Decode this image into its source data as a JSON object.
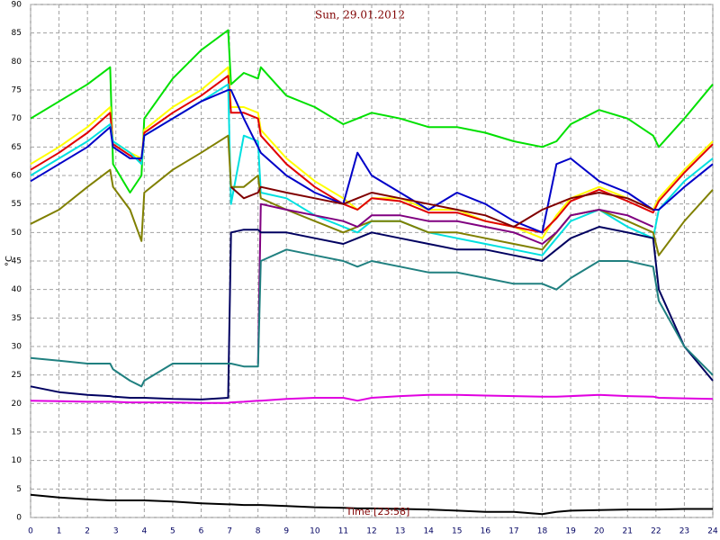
{
  "chart_data": {
    "type": "line",
    "title": "Sun, 29.01.2012",
    "y_label": "°C",
    "x_label": "Time [23:58]",
    "grid": true,
    "xlim": [
      0,
      24
    ],
    "ylim": [
      0,
      90
    ],
    "xticks": [
      0,
      1,
      2,
      3,
      4,
      5,
      6,
      7,
      8,
      9,
      10,
      11,
      12,
      13,
      14,
      15,
      16,
      17,
      18,
      19,
      20,
      21,
      22,
      23,
      24
    ],
    "yticks": [
      0,
      5,
      10,
      15,
      20,
      25,
      30,
      35,
      40,
      45,
      50,
      55,
      60,
      65,
      70,
      75,
      80,
      85,
      90
    ],
    "x": [
      0,
      1,
      2,
      2.8,
      2.9,
      3.5,
      3.9,
      4,
      5,
      6,
      6.95,
      7.05,
      7.5,
      8,
      8.1,
      9,
      10,
      11,
      11.5,
      12,
      13,
      14,
      15,
      16,
      17,
      18,
      18.5,
      19,
      20,
      21,
      21.9,
      22.1,
      23,
      24
    ],
    "series": [
      {
        "color": "#00e000",
        "values": [
          70,
          73,
          76,
          79,
          62,
          57,
          60,
          70,
          77,
          82,
          85.5,
          76,
          78,
          77,
          79,
          74,
          72,
          69,
          70,
          71,
          70,
          68.5,
          68.5,
          67.5,
          66,
          65,
          66,
          69,
          71.5,
          70,
          67,
          65,
          70,
          76
        ]
      },
      {
        "color": "#ffff00",
        "values": [
          62,
          65,
          68.5,
          72,
          66,
          64,
          63,
          68,
          72,
          75,
          79,
          72,
          72,
          71,
          68,
          63,
          59,
          56,
          54,
          56,
          56,
          54,
          54,
          52,
          51,
          49,
          53,
          56,
          58,
          56,
          54,
          56,
          61,
          66
        ]
      },
      {
        "color": "#e00000",
        "values": [
          61,
          64,
          67.5,
          71,
          65.5,
          63.5,
          62.5,
          67.5,
          71,
          74,
          77.5,
          71,
          71,
          70,
          67,
          62,
          58,
          55,
          54,
          56,
          55.5,
          53.5,
          53.5,
          52,
          51,
          50,
          52.5,
          55.5,
          57.5,
          55.5,
          53.5,
          55.5,
          60.5,
          65.5
        ]
      },
      {
        "color": "#00e0e0",
        "values": [
          60,
          63,
          66,
          69,
          66,
          64,
          62,
          67,
          70,
          73,
          76,
          55,
          67,
          66,
          57,
          56,
          53,
          51,
          50,
          52,
          52,
          50,
          49,
          48,
          47,
          46,
          49,
          52,
          54,
          51,
          49,
          54,
          59,
          63
        ]
      },
      {
        "color": "#0000c8",
        "values": [
          59,
          62,
          65,
          68.5,
          65,
          63,
          63,
          67,
          70,
          73,
          75,
          75,
          70,
          65,
          64,
          60,
          57,
          55,
          64,
          60,
          57,
          54,
          57,
          55,
          52,
          50,
          62,
          63,
          59,
          57,
          54,
          54,
          58,
          62
        ]
      },
      {
        "color": "#808000",
        "values": [
          51.5,
          54,
          58,
          61,
          58,
          54,
          48.5,
          57,
          61,
          64,
          67,
          58,
          58,
          60,
          56,
          54,
          52,
          50,
          51,
          52,
          52,
          50,
          50,
          49,
          48,
          47,
          50,
          53,
          54,
          52,
          50,
          46,
          52,
          57.5
        ]
      },
      {
        "color": "#800000",
        "values": [
          null,
          null,
          null,
          null,
          null,
          null,
          null,
          null,
          null,
          null,
          null,
          58,
          56,
          57,
          58,
          57,
          56,
          55,
          56,
          57,
          56,
          55,
          54,
          53,
          51,
          54,
          55,
          56,
          57,
          56,
          54,
          null,
          null,
          null
        ]
      },
      {
        "color": "#800080",
        "values": [
          null,
          null,
          null,
          null,
          null,
          null,
          null,
          null,
          null,
          null,
          null,
          null,
          null,
          27,
          55,
          54,
          53,
          52,
          51,
          53,
          53,
          52,
          52,
          51,
          50,
          48,
          50,
          53,
          54,
          53,
          51,
          null,
          null,
          null
        ]
      },
      {
        "color": "#000060",
        "values": [
          23,
          22,
          21.5,
          21.3,
          21.2,
          21,
          21,
          21,
          20.8,
          20.7,
          21,
          50,
          50.5,
          50.5,
          50,
          50,
          49,
          48,
          49,
          50,
          49,
          48,
          47,
          47,
          46,
          45,
          47,
          49,
          51,
          50,
          49,
          40,
          30,
          24
        ]
      },
      {
        "color": "#208080",
        "values": [
          28,
          27.5,
          27,
          27,
          26,
          24,
          23,
          24,
          27,
          27,
          27,
          27,
          26.5,
          26.5,
          45,
          47,
          46,
          45,
          44,
          45,
          44,
          43,
          43,
          42,
          41,
          41,
          40,
          42,
          45,
          45,
          44,
          38,
          30,
          25
        ]
      },
      {
        "color": "#e000e0",
        "values": [
          20.5,
          20.4,
          20.3,
          20.3,
          20.3,
          20.2,
          20.2,
          20.2,
          20.2,
          20.1,
          20.1,
          20.2,
          20.3,
          20.5,
          20.5,
          20.8,
          21,
          21,
          20.5,
          21,
          21.3,
          21.5,
          21.5,
          21.4,
          21.3,
          21.2,
          21.2,
          21.3,
          21.5,
          21.3,
          21.2,
          21,
          20.9,
          20.8
        ]
      },
      {
        "color": "#000000",
        "values": [
          4,
          3.5,
          3.2,
          3,
          3,
          3,
          3,
          3,
          2.8,
          2.5,
          2.3,
          2.3,
          2.2,
          2.2,
          2.2,
          2,
          1.8,
          1.7,
          1.6,
          1.6,
          1.5,
          1.4,
          1.2,
          1,
          1,
          0.6,
          1,
          1.2,
          1.3,
          1.4,
          1.4,
          1.4,
          1.5,
          1.5
        ]
      }
    ]
  }
}
